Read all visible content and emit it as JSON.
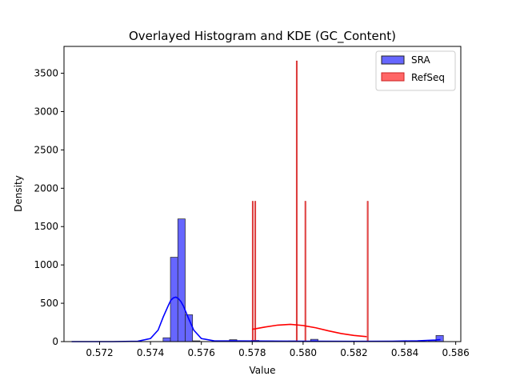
{
  "chart_data": {
    "type": "histogram",
    "title": "Overlayed Histogram and KDE (GC_Content)",
    "xlabel": "Value",
    "ylabel": "Density",
    "xlim": [
      0.5706,
      0.5862
    ],
    "ylim": [
      0,
      3850
    ],
    "xticks": [
      0.572,
      0.574,
      0.576,
      0.578,
      0.58,
      0.582,
      0.584,
      0.586
    ],
    "xtick_labels": [
      "0.572",
      "0.574",
      "0.576",
      "0.578",
      "0.580",
      "0.582",
      "0.584",
      "0.586"
    ],
    "yticks": [
      0,
      500,
      1000,
      1500,
      2000,
      2500,
      3000,
      3500
    ],
    "ytick_labels": [
      "0",
      "500",
      "1000",
      "1500",
      "2000",
      "2500",
      "3000",
      "3500"
    ],
    "grid": false,
    "legend_position": "top-right",
    "series": [
      {
        "name": "SRA",
        "bar_color": "#6666ff",
        "edge_color": "#222222",
        "line_color": "#0000ff",
        "bin_width": 0.00029,
        "bins": [
          {
            "x": 0.57464,
            "y": 50
          },
          {
            "x": 0.57493,
            "y": 1100
          },
          {
            "x": 0.57522,
            "y": 1600
          },
          {
            "x": 0.57551,
            "y": 350
          },
          {
            "x": 0.5758,
            "y": 10
          },
          {
            "x": 0.57725,
            "y": 25
          },
          {
            "x": 0.57783,
            "y": 8
          },
          {
            "x": 0.57812,
            "y": 15
          },
          {
            "x": 0.5787,
            "y": 8
          },
          {
            "x": 0.57957,
            "y": 8
          },
          {
            "x": 0.58044,
            "y": 30
          },
          {
            "x": 0.58247,
            "y": 5
          },
          {
            "x": 0.58508,
            "y": 15
          },
          {
            "x": 0.58537,
            "y": 80
          }
        ],
        "kde": {
          "x": [
            0.5709,
            0.5725,
            0.5735,
            0.574,
            0.5743,
            0.5745,
            0.5747,
            0.5748,
            0.5749,
            0.575,
            0.5751,
            0.5752,
            0.5753,
            0.5755,
            0.5757,
            0.576,
            0.5765,
            0.5775,
            0.579,
            0.5805,
            0.582,
            0.5835,
            0.5845,
            0.5852,
            0.5854
          ],
          "y": [
            0,
            0,
            5,
            40,
            150,
            320,
            470,
            540,
            570,
            580,
            560,
            520,
            460,
            300,
            150,
            40,
            10,
            8,
            6,
            5,
            4,
            5,
            10,
            20,
            25
          ]
        }
      },
      {
        "name": "RefSeq",
        "bar_color": "#ff6666",
        "edge_color": "#cc2222",
        "line_color": "#ff0000",
        "bin_width": 4e-05,
        "bins": [
          {
            "x": 0.57802,
            "y": 1830
          },
          {
            "x": 0.57812,
            "y": 1830
          },
          {
            "x": 0.57975,
            "y": 3660
          },
          {
            "x": 0.58009,
            "y": 1830
          },
          {
            "x": 0.58254,
            "y": 1830
          }
        ],
        "kde": {
          "x": [
            0.578,
            0.5785,
            0.579,
            0.5795,
            0.58,
            0.5805,
            0.581,
            0.5815,
            0.582,
            0.5825
          ],
          "y": [
            160,
            190,
            215,
            225,
            210,
            180,
            140,
            105,
            80,
            65
          ]
        }
      }
    ]
  }
}
